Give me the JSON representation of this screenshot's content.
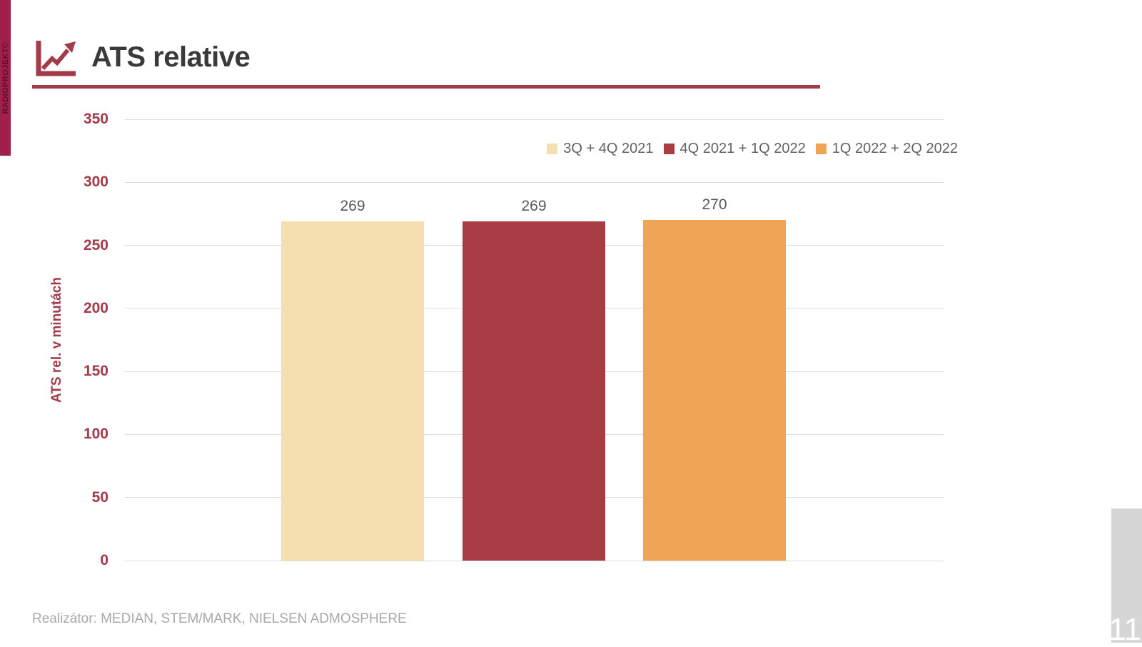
{
  "ribbon": {
    "text": "RADIOPROJEKT©"
  },
  "header": {
    "title": "ATS relative"
  },
  "chart_data": {
    "type": "bar",
    "title": "ATS relative",
    "categories": [
      "3Q + 4Q 2021",
      "4Q 2021 + 1Q 2022",
      "1Q 2022 + 2Q 2022"
    ],
    "values": [
      269,
      269,
      270
    ],
    "data_labels": [
      "269",
      "269",
      "270"
    ],
    "bar_colors": [
      "#F5DFB0",
      "#A93B45",
      "#F0A455"
    ],
    "legend": [
      "3Q + 4Q 2021",
      "4Q 2021 + 1Q 2022",
      "1Q 2022 + 2Q 2022"
    ],
    "legend_position": "top-right",
    "xlabel": "",
    "ylabel": "ATS rel. v minutách",
    "ylim": [
      0,
      350
    ],
    "ytick_step": 50,
    "grid": "horizontal"
  },
  "footer": {
    "realizator": "Realizátor: MEDIAN, STEM/MARK, NIELSEN ADMOSPHERE",
    "page_number": "11"
  },
  "colors": {
    "accent_maroon": "#A23B4A",
    "ribbon_crimson": "#A0204B",
    "title_text": "#3A3A3A",
    "value_label_gray": "#595959",
    "legend_text_gray": "#636363",
    "footer_gray": "#A8A8A8",
    "gridline_gray": "#DCDCDC",
    "page_tab_gray": "#D6D6D6",
    "page_number_white": "#FFFFFF"
  }
}
